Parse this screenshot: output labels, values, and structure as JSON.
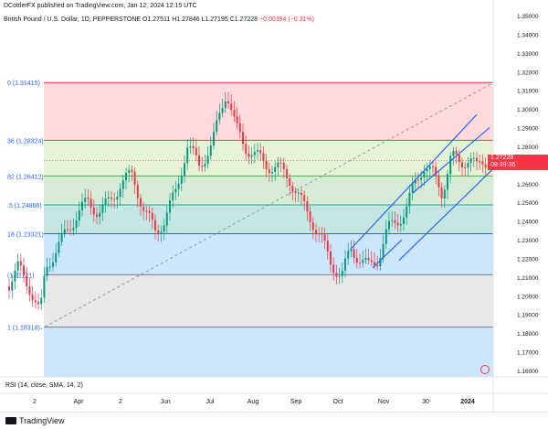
{
  "header": {
    "published": "DCottlerFX published on TradingView.com, Jan 12, 2024 12:15 UTC",
    "symbol": "British Pound / U.S. Dollar, 1D, PEPPERSTONE",
    "open_label": "O",
    "open": "1.27511",
    "high_label": "H",
    "high": "1.27846",
    "low_label": "L",
    "low": "1.27195",
    "close_label": "C",
    "close": "1.27228",
    "change": "−0.00394 (−0.31%)"
  },
  "price_tag": {
    "price": "1.27228",
    "countdown": "09:39:36"
  },
  "rsi_label": "RSI (14, close, SMA, 14, 2)",
  "branding": {
    "logo": "TradingView"
  },
  "colors": {
    "up": "#089981",
    "down": "#f23645",
    "channel": "#2962ff",
    "diag": "#888888"
  },
  "chart_data": {
    "type": "candlestick",
    "title": "British Pound / U.S. Dollar, 1D",
    "ylim": [
      1.155,
      1.355
    ],
    "y_ticks": [
      "1.16000",
      "1.17000",
      "1.18000",
      "1.19000",
      "1.20000",
      "1.21000",
      "1.22000",
      "1.23000",
      "1.24000",
      "1.25000",
      "1.26000",
      "1.27000",
      "1.28000",
      "1.29000",
      "1.30000",
      "1.31000",
      "1.32000",
      "1.33000",
      "1.34000",
      "1.35000"
    ],
    "x_tick_labels": [
      "2",
      "Apr",
      "2",
      "Jun",
      "Jul",
      "Aug",
      "Sep",
      "Oct",
      "Nov",
      "30",
      "2024"
    ],
    "fib_levels": [
      {
        "ratio": "0",
        "value": 1.31415,
        "label": "0 (1.31415)",
        "fill": "#ffcdd2"
      },
      {
        "ratio": "0.236",
        "value": 1.28324,
        "label": "36 (1.28324)",
        "fill": "#dcedc8"
      },
      {
        "ratio": "0.382",
        "value": 1.26412,
        "label": "82 (1.26412)",
        "fill": "#c8e6c9"
      },
      {
        "ratio": "0.5",
        "value": 1.24866,
        "label": ".5 (1.24866)",
        "fill": "#b2dfdb"
      },
      {
        "ratio": "0.618",
        "value": 1.23321,
        "label": "18 (1.23321)",
        "fill": "#bbdefb"
      },
      {
        "ratio": "0.786",
        "value": 1.21121,
        "label": "(1.21121)",
        "fill": "#e0e0e0"
      },
      {
        "ratio": "1",
        "value": 1.18318,
        "label": "1 (1.18318)",
        "fill": "#bbdefb"
      }
    ],
    "series": [
      {
        "name": "GBPUSD",
        "ohlc": []
      }
    ]
  }
}
